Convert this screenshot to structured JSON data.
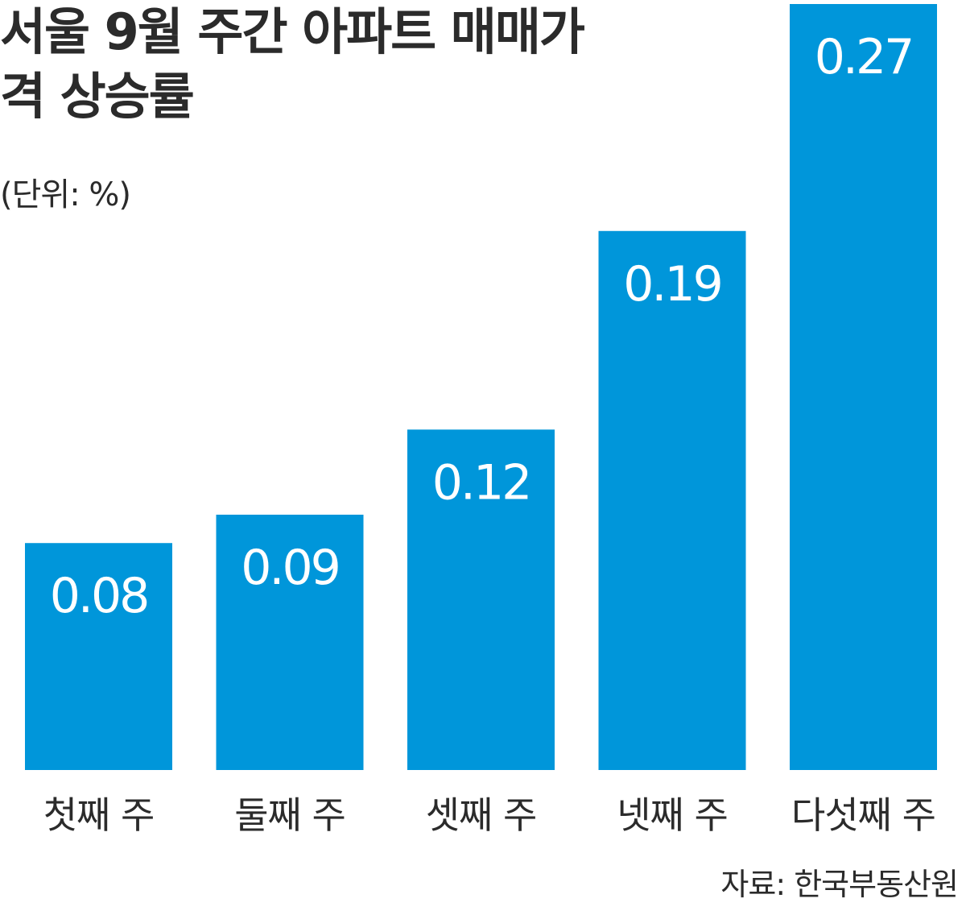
{
  "title": "서울 9월 주간 아파트 매매가격 상승률",
  "unit_label": "(단위: %)",
  "source": "자료: 한국부동산원",
  "colors": {
    "bar": "#0096da",
    "value_text": "#ffffff",
    "text": "#2b2b2b"
  },
  "chart_data": {
    "type": "bar",
    "title": "서울 9월 주간 아파트 매매가격 상승률",
    "categories": [
      "첫째 주",
      "둘째 주",
      "셋째 주",
      "넷째 주",
      "다섯째 주"
    ],
    "values": [
      0.08,
      0.09,
      0.12,
      0.19,
      0.27
    ],
    "value_labels": [
      "0.08",
      "0.09",
      "0.12",
      "0.19",
      "0.27"
    ],
    "xlabel": "",
    "ylabel": "",
    "ylim": [
      0,
      0.27
    ],
    "grid": false,
    "legend": "none"
  }
}
